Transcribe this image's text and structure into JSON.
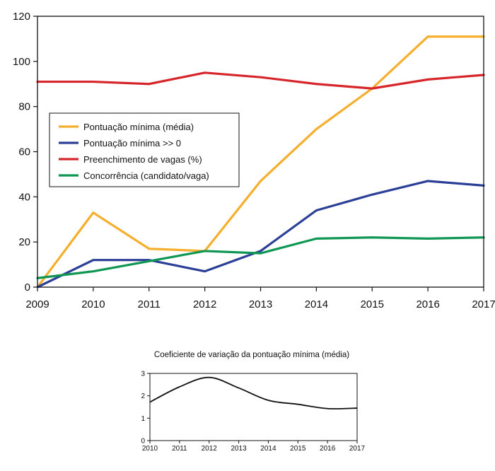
{
  "chart_data": [
    {
      "type": "line",
      "title": "",
      "xlabel": "",
      "ylabel": "",
      "x": [
        2009,
        2010,
        2011,
        2012,
        2013,
        2014,
        2015,
        2016,
        2017
      ],
      "xticks": [
        "2009",
        "2010",
        "2011",
        "2012",
        "2013",
        "2014",
        "2015",
        "2016",
        "2017"
      ],
      "yticks": [
        "0",
        "20",
        "40",
        "60",
        "80",
        "100",
        "120"
      ],
      "xlim": [
        2009,
        2017
      ],
      "ylim": [
        0,
        120
      ],
      "grid": false,
      "legend_position": "middle-left",
      "series": [
        {
          "name": "Pontuação mínima (média)",
          "color": "#f6ae2d",
          "values": [
            0,
            33,
            17,
            16,
            47,
            70,
            88,
            111,
            111
          ]
        },
        {
          "name": "Pontuação mínima >> 0",
          "color": "#2c3f97",
          "values": [
            0,
            12,
            12,
            7,
            16,
            34,
            41,
            47,
            45
          ]
        },
        {
          "name": "Preenchimento de vagas (%)",
          "color": "#d7262b",
          "values": [
            91,
            91,
            90,
            95,
            93,
            90,
            88,
            92,
            94
          ]
        },
        {
          "name": "Concorrência (candidato/vaga)",
          "color": "#0f9653",
          "values": [
            4,
            7,
            11.5,
            16,
            15,
            21.5,
            22,
            21.5,
            22
          ]
        }
      ]
    },
    {
      "type": "line",
      "title": "Coeficiente de variação da pontuação mínima (média)",
      "xlabel": "",
      "ylabel": "",
      "x": [
        2010,
        2011,
        2012,
        2013,
        2014,
        2015,
        2016,
        2017
      ],
      "xticks": [
        "2010",
        "2011",
        "2012",
        "2013",
        "2014",
        "2015",
        "2016",
        "2017"
      ],
      "yticks": [
        "0",
        "1",
        "2",
        "3"
      ],
      "xlim": [
        2010,
        2017
      ],
      "ylim": [
        0,
        3
      ],
      "grid": false,
      "series": [
        {
          "color": "#111111",
          "values": [
            1.72,
            2.4,
            2.82,
            2.35,
            1.8,
            1.62,
            1.43,
            1.45
          ]
        }
      ]
    }
  ]
}
